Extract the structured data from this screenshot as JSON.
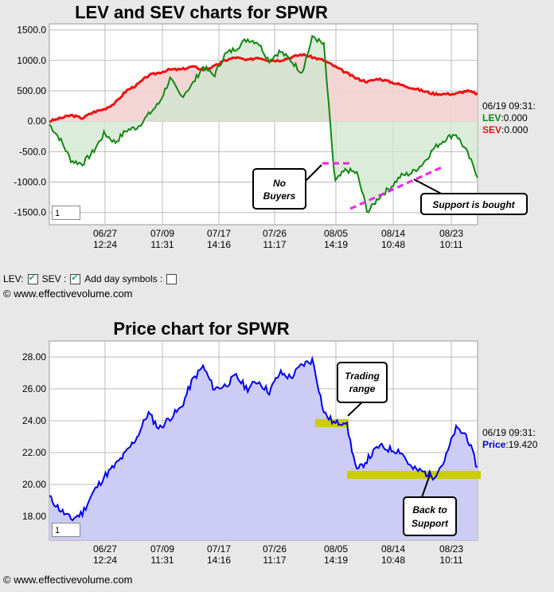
{
  "chart1": {
    "title": "LEV and SEV charts for SPWR",
    "y_ticks": [
      "1500.0",
      "1000.0",
      "500.00",
      "0.00",
      "-500.0",
      "-1000.0",
      "-1500.0"
    ],
    "y_tick_values": [
      1500,
      1000,
      500,
      0,
      -500,
      -1000,
      -1500
    ],
    "x_ticks": [
      {
        "d": "06/27",
        "t": "12:24"
      },
      {
        "d": "07/09",
        "t": "11:31"
      },
      {
        "d": "07/17",
        "t": "14:16"
      },
      {
        "d": "07/26",
        "t": "11:17"
      },
      {
        "d": "08/05",
        "t": "14:19"
      },
      {
        "d": "08/14",
        "t": "10:48"
      },
      {
        "d": "08/23",
        "t": "10:11"
      }
    ],
    "input_value": "1",
    "annotations": {
      "no_buyers": [
        "No",
        "Buyers"
      ],
      "support": "Support is bought"
    },
    "side": {
      "time": "06/19 09:31:",
      "lev_label": "LEV",
      "lev_value": ":0.000",
      "sev_label": "SEV",
      "sev_value": ":0.000"
    }
  },
  "chart2": {
    "title": "Price chart for SPWR",
    "y_ticks": [
      "28.00",
      "26.00",
      "24.00",
      "22.00",
      "20.00",
      "18.00"
    ],
    "y_tick_values": [
      28,
      26,
      24,
      22,
      20,
      18
    ],
    "x_ticks": [
      {
        "d": "06/27",
        "t": "12:24"
      },
      {
        "d": "07/09",
        "t": "11:31"
      },
      {
        "d": "07/17",
        "t": "14:16"
      },
      {
        "d": "07/26",
        "t": "11:17"
      },
      {
        "d": "08/05",
        "t": "14:19"
      },
      {
        "d": "08/14",
        "t": "10:48"
      },
      {
        "d": "08/23",
        "t": "10:11"
      }
    ],
    "input_value": "1",
    "annotations": {
      "trading": [
        "Trading",
        "range"
      ],
      "back": [
        "Back to",
        "Support"
      ]
    },
    "side": {
      "time": "06/19 09:31:",
      "price_label": "Price",
      "price_value": ":19.420"
    }
  },
  "controls": {
    "lev": "LEV:",
    "sev": "SEV :",
    "add_day": "Add day symbols :"
  },
  "copyright": "© www.effectivevolume.com",
  "colors": {
    "lev": "#118811",
    "sev": "#ee1111",
    "price": "#0000ee",
    "price_fill": "#ccccf4",
    "lev_fill": "#cfe6cf",
    "sev_fill": "#f3d0d0",
    "highlight": "#cccc00",
    "annotation_line": "#ee22ee"
  },
  "chart_data": [
    {
      "type": "line",
      "title": "LEV and SEV charts for SPWR",
      "ylim": [
        -1700,
        1600
      ],
      "series": [
        {
          "name": "LEV",
          "values": [
            -50,
            -300,
            -650,
            -700,
            -500,
            -200,
            -350,
            -150,
            -100,
            100,
            300,
            700,
            400,
            600,
            900,
            750,
            1100,
            1200,
            1350,
            1300,
            1000,
            1150,
            1000,
            800,
            1400,
            1250,
            -1000,
            -800,
            -850,
            -1500,
            -1250,
            -1100,
            -900,
            -850,
            -700,
            -450,
            -300,
            -200,
            -500,
            -900
          ]
        },
        {
          "name": "SEV",
          "values": [
            0,
            50,
            100,
            50,
            150,
            200,
            300,
            500,
            600,
            750,
            800,
            850,
            850,
            900,
            850,
            900,
            1000,
            1050,
            1000,
            1050,
            1000,
            1000,
            1050,
            1100,
            1050,
            1000,
            900,
            800,
            700,
            650,
            700,
            650,
            600,
            550,
            500,
            450,
            450,
            450,
            500,
            450
          ]
        }
      ]
    },
    {
      "type": "area",
      "title": "Price chart for SPWR",
      "ylim": [
        16.5,
        29
      ],
      "series": [
        {
          "name": "Price",
          "values": [
            19.2,
            18.4,
            17.8,
            18.2,
            19.5,
            20.5,
            21.2,
            22.0,
            23.0,
            24.5,
            23.5,
            24.2,
            24.8,
            26.5,
            27.4,
            26.0,
            26.2,
            26.8,
            26.0,
            26.5,
            25.8,
            27.0,
            26.7,
            27.5,
            27.8,
            24.5,
            23.8,
            24.0,
            20.8,
            21.6,
            22.4,
            22.2,
            22.1,
            21.0,
            20.8,
            20.5,
            21.5,
            23.5,
            23.1,
            21.0
          ]
        }
      ]
    }
  ]
}
